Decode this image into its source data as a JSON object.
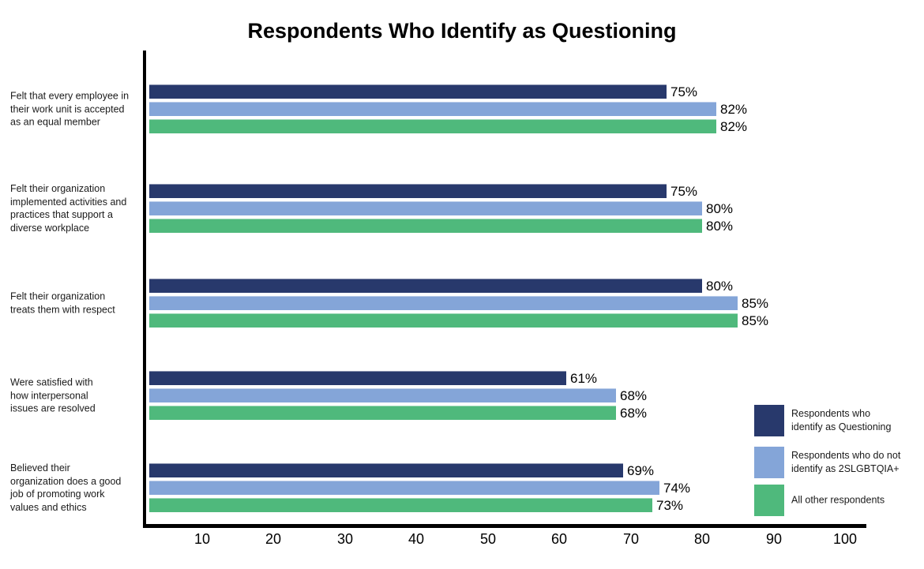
{
  "title": "Respondents Who Identify as Questioning",
  "chart_data": {
    "type": "bar",
    "orientation": "horizontal",
    "title": "Respondents Who Identify as Questioning",
    "grid": false,
    "legend_position": "bottom-right",
    "xlim": [
      0,
      100
    ],
    "x_ticks": [
      10,
      20,
      30,
      40,
      50,
      60,
      70,
      80,
      90,
      100
    ],
    "value_suffix": "%",
    "categories": [
      [
        "Felt that every employee in",
        "their work unit is accepted",
        "as an equal member"
      ],
      [
        "Felt their organization",
        "implemented activities and",
        "practices that support a",
        "diverse workplace"
      ],
      [
        "Felt their organization",
        "treats them with respect"
      ],
      [
        "Were satisfied with",
        "how interpersonal",
        "issues are resolved"
      ],
      [
        "Believed their",
        "organization does a good",
        "job of promoting work",
        "values and ethics"
      ]
    ],
    "series": [
      {
        "name": "Respondents who identify as Questioning",
        "legend_lines": [
          "Respondents who",
          "identify as Questioning"
        ],
        "color": "#28396C",
        "values": [
          75,
          75,
          80,
          61,
          69
        ]
      },
      {
        "name": "Respondents who do not identify as 2SLGBTQIA+",
        "legend_lines": [
          "Respondents who do not",
          "identify as 2SLGBTQIA+"
        ],
        "color": "#84A5D8",
        "values": [
          82,
          80,
          85,
          68,
          74
        ]
      },
      {
        "name": "All other respondents",
        "legend_lines": [
          "All other respondents"
        ],
        "color": "#4FB97C",
        "values": [
          82,
          80,
          85,
          68,
          73
        ]
      }
    ]
  }
}
